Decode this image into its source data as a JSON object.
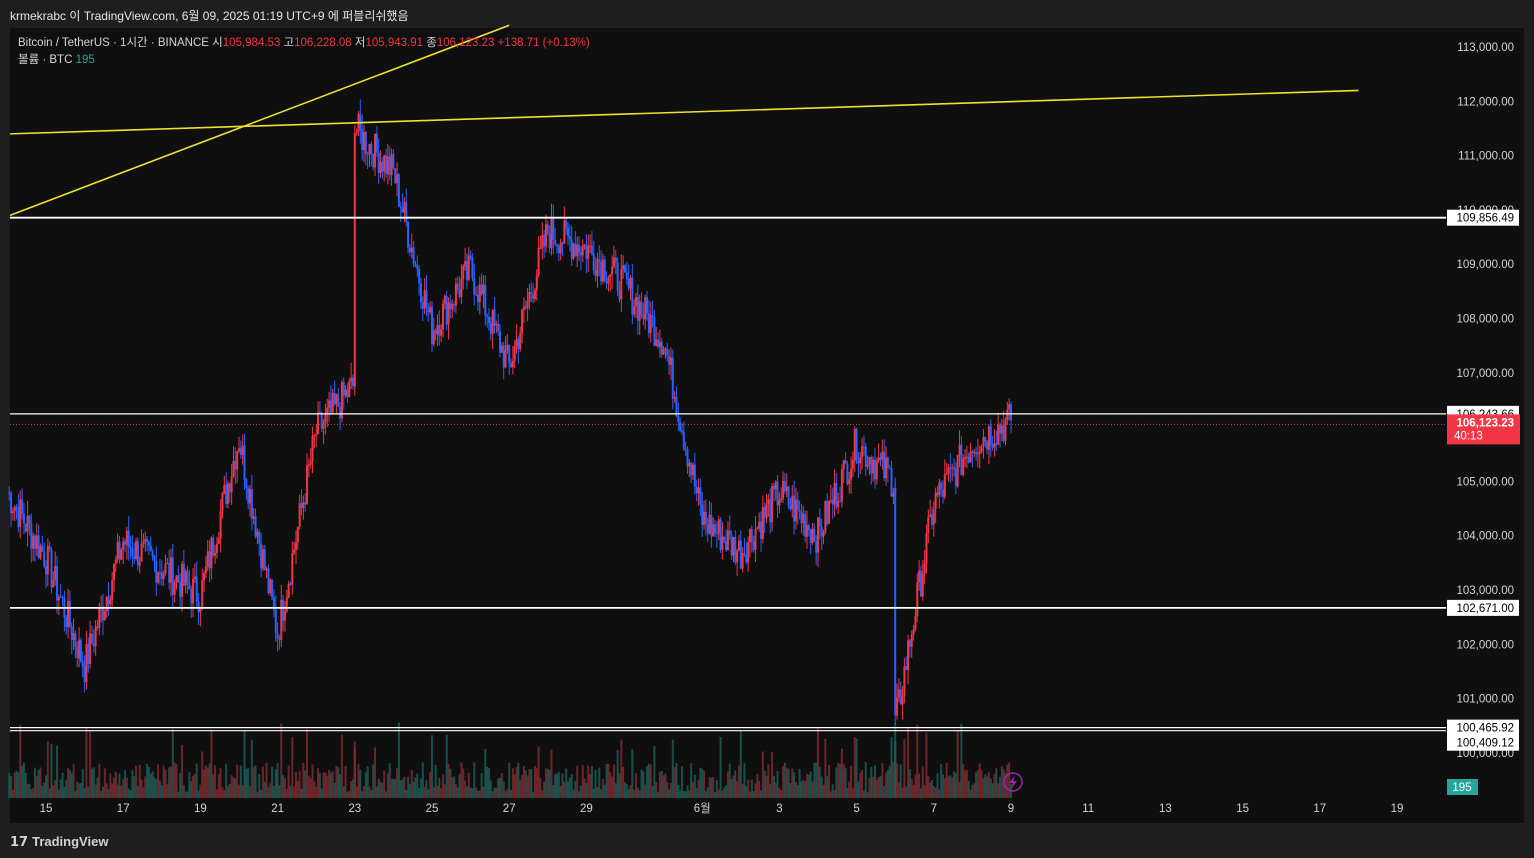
{
  "header": {
    "attribution": "krmekrabc 이 TradingView.com, 6월 09, 2025 01:19 UTC+9 에 퍼블리쉬했음"
  },
  "legend": {
    "symbol": "Bitcoin / TetherUS · 1시간 · BINANCE",
    "o_label": "시",
    "o_value": "105,984.53",
    "h_label": "고",
    "h_value": "106,228.08",
    "l_label": "저",
    "l_value": "105,943.91",
    "c_label": "종",
    "c_value": "106,123.23",
    "change": "+138.71 (+0.13%)",
    "volume_label": "볼륨 · BTC",
    "volume_value": "195"
  },
  "footer": {
    "brand": "TradingView"
  },
  "colors": {
    "up": "#f23645",
    "down": "#2962ff",
    "trendline": "#f0e130",
    "level": "#ffffff",
    "price_tag": "#f23645",
    "volume_tag": "#26a69a"
  },
  "chart_data": {
    "type": "candlestick",
    "y_axis": {
      "ticks": [
        "113,000.00",
        "112,000.00",
        "111,000.00",
        "110,000.00",
        "109,000.00",
        "108,000.00",
        "107,000.00",
        "105,000.00",
        "104,000.00",
        "103,000.00",
        "102,000.00",
        "101,000.00",
        "100,000.00"
      ],
      "tick_values": [
        113000,
        112000,
        111000,
        110000,
        109000,
        108000,
        107000,
        105000,
        104000,
        103000,
        102000,
        101000,
        100000
      ],
      "range": [
        99750,
        113500
      ]
    },
    "x_axis": {
      "ticks": [
        "15",
        "17",
        "19",
        "21",
        "23",
        "25",
        "27",
        "29",
        "6월",
        "3",
        "5",
        "7",
        "9",
        "11",
        "13",
        "15",
        "17",
        "19"
      ]
    },
    "horizontal_levels": [
      {
        "label": "109,856.49",
        "value": 109856.49
      },
      {
        "label": "106,243.66",
        "value": 106243.66
      },
      {
        "label": "102,671.00",
        "value": 102671.0
      },
      {
        "label": "100,465.92",
        "value": 100465.92
      },
      {
        "label": "100,409.12",
        "value": 100409.12
      }
    ],
    "current_price": {
      "label": "106,123.23",
      "countdown": "40:13",
      "value": 106123.23
    },
    "volume_tag": "195",
    "trendlines": [
      {
        "from": [
          "5/14",
          109900
        ],
        "to": [
          "5/27",
          113400
        ]
      },
      {
        "from": [
          "5/14",
          111400
        ],
        "to": [
          "6/18",
          112200
        ]
      }
    ],
    "price_path_daily": [
      [
        "5/14",
        104800
      ],
      [
        "5/15",
        103600
      ],
      [
        "5/16",
        101600
      ],
      [
        "5/17",
        103900
      ],
      [
        "5/18",
        103400
      ],
      [
        "5/19",
        102900
      ],
      [
        "5/20",
        105800
      ],
      [
        "5/21",
        102200
      ],
      [
        "5/22",
        105900
      ],
      [
        "5/23",
        106800
      ],
      [
        "5/23",
        111500
      ],
      [
        "5/24",
        110700
      ],
      [
        "5/25",
        107800
      ],
      [
        "5/26",
        108900
      ],
      [
        "5/27",
        107100
      ],
      [
        "5/28",
        109600
      ],
      [
        "5/29",
        109300
      ],
      [
        "5/30",
        108600
      ],
      [
        "5/31",
        107600
      ],
      [
        "6/1",
        104300
      ],
      [
        "6/2",
        103700
      ],
      [
        "6/3",
        104800
      ],
      [
        "6/4",
        104000
      ],
      [
        "6/5",
        105700
      ],
      [
        "6/6",
        105000
      ],
      [
        "6/6",
        100500
      ],
      [
        "6/7",
        104600
      ],
      [
        "6/8",
        105700
      ],
      [
        "6/9",
        106123
      ]
    ]
  }
}
